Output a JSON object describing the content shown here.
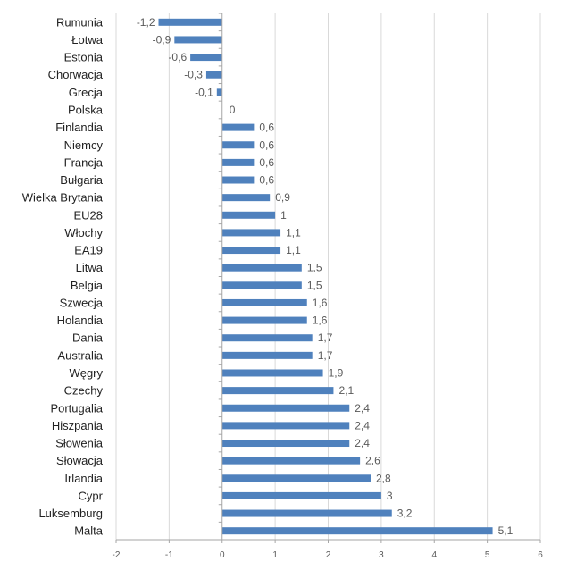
{
  "chart_data": {
    "type": "bar",
    "orientation": "horizontal",
    "categories": [
      "Rumunia",
      "Łotwa",
      "Estonia",
      "Chorwacja",
      "Grecja",
      "Polska",
      "Finlandia",
      "Niemcy",
      "Francja",
      "Bułgaria",
      "Wielka Brytania",
      "EU28",
      "Włochy",
      "EA19",
      "Litwa",
      "Belgia",
      "Szwecja",
      "Holandia",
      "Dania",
      "Australia",
      "Węgry",
      "Czechy",
      "Portugalia",
      "Hiszpania",
      "Słowenia",
      "Słowacja",
      "Irlandia",
      "Cypr",
      "Luksemburg",
      "Malta"
    ],
    "values": [
      -1.2,
      -0.9,
      -0.6,
      -0.3,
      -0.1,
      0,
      0.6,
      0.6,
      0.6,
      0.6,
      0.9,
      1,
      1.1,
      1.1,
      1.5,
      1.5,
      1.6,
      1.6,
      1.7,
      1.7,
      1.9,
      2.1,
      2.4,
      2.4,
      2.4,
      2.6,
      2.8,
      3,
      3.2,
      5.1
    ],
    "value_labels": [
      "-1,2",
      "-0,9",
      "-0,6",
      "-0,3",
      "-0,1",
      "0",
      "0,6",
      "0,6",
      "0,6",
      "0,6",
      "0,9",
      "1",
      "1,1",
      "1,1",
      "1,5",
      "1,5",
      "1,6",
      "1,6",
      "1,7",
      "1,7",
      "1,9",
      "2,1",
      "2,4",
      "2,4",
      "2,4",
      "2,6",
      "2,8",
      "3",
      "3,2",
      "5,1"
    ],
    "xlim": [
      -2,
      6
    ],
    "xticks": [
      -2,
      -1,
      0,
      1,
      2,
      3,
      4,
      5,
      6
    ],
    "xtick_labels": [
      "-2",
      "-1",
      "0",
      "1",
      "2",
      "3",
      "4",
      "5",
      "6"
    ],
    "title": "",
    "xlabel": "",
    "ylabel": "",
    "grid": "vertical",
    "legend": "none",
    "bar_color": "#4F81BD",
    "grid_color": "#D9D9D9",
    "axis_color": "#A6A6A6"
  }
}
